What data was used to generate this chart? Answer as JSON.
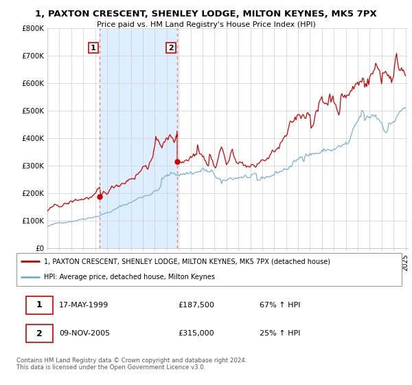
{
  "title": "1, PAXTON CRESCENT, SHENLEY LODGE, MILTON KEYNES, MK5 7PX",
  "subtitle": "Price paid vs. HM Land Registry's House Price Index (HPI)",
  "ylim": [
    0,
    800000
  ],
  "yticks": [
    0,
    100000,
    200000,
    300000,
    400000,
    500000,
    600000,
    700000,
    800000
  ],
  "ytick_labels": [
    "£0",
    "£100K",
    "£200K",
    "£300K",
    "£400K",
    "£500K",
    "£600K",
    "£700K",
    "£800K"
  ],
  "xlim_start": 1995.0,
  "xlim_end": 2025.2,
  "transaction1_x": 1999.375,
  "transaction1_y": 187500,
  "transaction1_label": "1",
  "transaction2_x": 2005.875,
  "transaction2_y": 315000,
  "transaction2_pre_y": 425000,
  "transaction2_label": "2",
  "red_line_color": "#cc0000",
  "blue_line_color": "#7aaed6",
  "dashed_line_color": "#e87070",
  "shade_color": "#ddeeff",
  "background_color": "#ffffff",
  "grid_color": "#cccccc",
  "legend_entries": [
    "1, PAXTON CRESCENT, SHENLEY LODGE, MILTON KEYNES, MK5 7PX (detached house)",
    "HPI: Average price, detached house, Milton Keynes"
  ],
  "table_rows": [
    [
      "1",
      "17-MAY-1999",
      "£187,500",
      "67% ↑ HPI"
    ],
    [
      "2",
      "09-NOV-2005",
      "£315,000",
      "25% ↑ HPI"
    ]
  ],
  "footer": "Contains HM Land Registry data © Crown copyright and database right 2024.\nThis data is licensed under the Open Government Licence v3.0."
}
